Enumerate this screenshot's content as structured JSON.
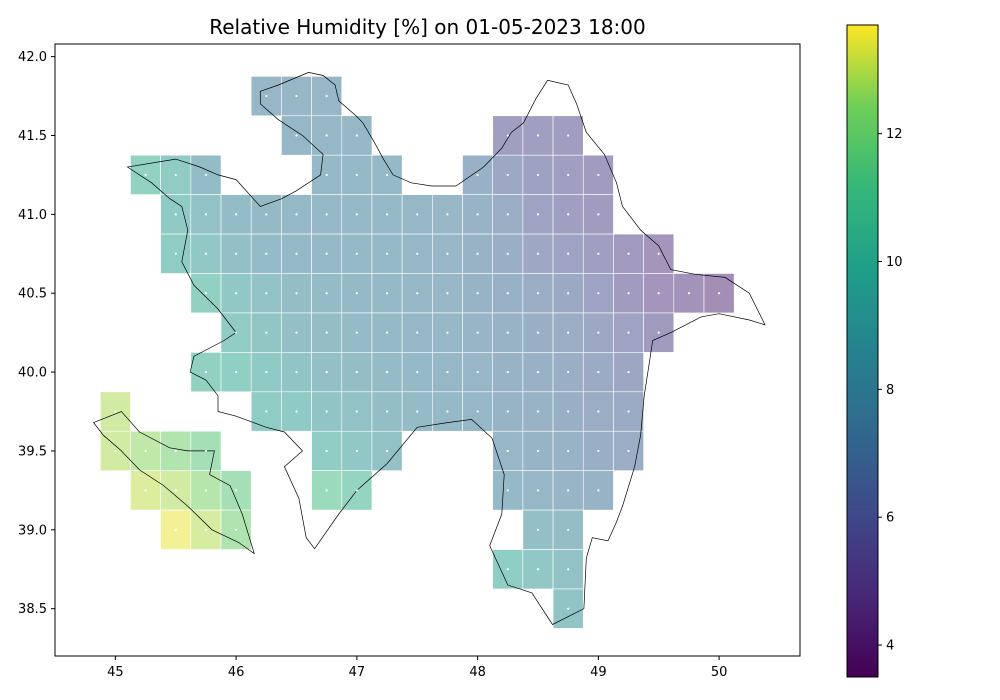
{
  "chart_data": {
    "type": "heatmap",
    "title": "Relative Humidity [%] on 01-05-2023 18:00",
    "xlabel": "",
    "ylabel": "",
    "xlim": [
      44.5,
      50.67
    ],
    "ylim": [
      38.2,
      42.08
    ],
    "x_ticks": [
      45,
      46,
      47,
      48,
      49,
      50
    ],
    "y_ticks": [
      38.5,
      39.0,
      39.5,
      40.0,
      40.5,
      41.0,
      41.5,
      42.0
    ],
    "x_tick_labels": [
      "45",
      "46",
      "47",
      "48",
      "49",
      "50"
    ],
    "y_tick_labels": [
      "38.5",
      "39.0",
      "39.5",
      "40.0",
      "40.5",
      "41.0",
      "41.5",
      "42.0"
    ],
    "grid": false,
    "cell_size_deg": 0.25,
    "colorbar": {
      "colormap": "viridis",
      "range": [
        3.5,
        13.7
      ],
      "ticks": [
        4,
        6,
        8,
        10,
        12
      ],
      "tick_labels": [
        "4",
        "6",
        "8",
        "10",
        "12"
      ]
    },
    "cells": [
      [
        46.25,
        41.75,
        7.6
      ],
      [
        46.5,
        41.75,
        7.6
      ],
      [
        46.75,
        41.75,
        7.6
      ],
      [
        46.5,
        41.5,
        7.7
      ],
      [
        46.75,
        41.5,
        7.7
      ],
      [
        47.0,
        41.5,
        7.7
      ],
      [
        48.25,
        41.5,
        5.7
      ],
      [
        48.5,
        41.5,
        5.6
      ],
      [
        48.75,
        41.5,
        5.5
      ],
      [
        45.25,
        41.25,
        10.3
      ],
      [
        45.5,
        41.25,
        9.6
      ],
      [
        45.75,
        41.25,
        8.2
      ],
      [
        46.75,
        41.25,
        7.9
      ],
      [
        47.0,
        41.25,
        7.9
      ],
      [
        47.25,
        41.25,
        7.9
      ],
      [
        48.0,
        41.25,
        7.1
      ],
      [
        48.25,
        41.25,
        6.4
      ],
      [
        48.5,
        41.25,
        5.8
      ],
      [
        48.75,
        41.25,
        5.6
      ],
      [
        49.0,
        41.25,
        5.4
      ],
      [
        45.5,
        41.0,
        9.5
      ],
      [
        45.75,
        41.0,
        8.7
      ],
      [
        46.0,
        41.0,
        8.2
      ],
      [
        46.25,
        41.0,
        8.0
      ],
      [
        46.5,
        41.0,
        7.9
      ],
      [
        46.75,
        41.0,
        7.9
      ],
      [
        47.0,
        41.0,
        7.9
      ],
      [
        47.25,
        41.0,
        7.9
      ],
      [
        47.5,
        41.0,
        7.8
      ],
      [
        47.75,
        41.0,
        7.6
      ],
      [
        48.0,
        41.0,
        7.3
      ],
      [
        48.25,
        41.0,
        6.7
      ],
      [
        48.5,
        41.0,
        6.0
      ],
      [
        48.75,
        41.0,
        5.7
      ],
      [
        49.0,
        41.0,
        5.4
      ],
      [
        45.5,
        40.75,
        9.8
      ],
      [
        45.75,
        40.75,
        9.2
      ],
      [
        46.0,
        40.75,
        8.5
      ],
      [
        46.25,
        40.75,
        8.2
      ],
      [
        46.5,
        40.75,
        8.0
      ],
      [
        46.75,
        40.75,
        8.0
      ],
      [
        47.0,
        40.75,
        8.0
      ],
      [
        47.25,
        40.75,
        7.9
      ],
      [
        47.5,
        40.75,
        7.8
      ],
      [
        47.75,
        40.75,
        7.6
      ],
      [
        48.0,
        40.75,
        7.3
      ],
      [
        48.25,
        40.75,
        6.9
      ],
      [
        48.5,
        40.75,
        6.4
      ],
      [
        48.75,
        40.75,
        6.0
      ],
      [
        49.0,
        40.75,
        5.6
      ],
      [
        49.25,
        40.75,
        5.2
      ],
      [
        49.5,
        40.75,
        4.9
      ],
      [
        45.75,
        40.5,
        10.2
      ],
      [
        46.0,
        40.5,
        9.2
      ],
      [
        46.25,
        40.5,
        8.7
      ],
      [
        46.5,
        40.5,
        8.3
      ],
      [
        46.75,
        40.5,
        8.1
      ],
      [
        47.0,
        40.5,
        8.0
      ],
      [
        47.25,
        40.5,
        7.9
      ],
      [
        47.5,
        40.5,
        7.8
      ],
      [
        47.75,
        40.5,
        7.6
      ],
      [
        48.0,
        40.5,
        7.4
      ],
      [
        48.25,
        40.5,
        7.1
      ],
      [
        48.5,
        40.5,
        6.8
      ],
      [
        48.75,
        40.5,
        6.5
      ],
      [
        49.0,
        40.5,
        6.0
      ],
      [
        49.25,
        40.5,
        5.4
      ],
      [
        49.5,
        40.5,
        4.9
      ],
      [
        49.75,
        40.5,
        4.7
      ],
      [
        50.0,
        40.5,
        4.4
      ],
      [
        46.0,
        40.25,
        9.6
      ],
      [
        46.25,
        40.25,
        9.1
      ],
      [
        46.5,
        40.25,
        8.6
      ],
      [
        46.75,
        40.25,
        8.3
      ],
      [
        47.0,
        40.25,
        8.1
      ],
      [
        47.25,
        40.25,
        8.0
      ],
      [
        47.5,
        40.25,
        7.8
      ],
      [
        47.75,
        40.25,
        7.7
      ],
      [
        48.0,
        40.25,
        7.5
      ],
      [
        48.25,
        40.25,
        7.3
      ],
      [
        48.5,
        40.25,
        7.0
      ],
      [
        48.75,
        40.25,
        6.8
      ],
      [
        49.0,
        40.25,
        6.4
      ],
      [
        49.25,
        40.25,
        5.9
      ],
      [
        49.5,
        40.25,
        5.3
      ],
      [
        45.75,
        40.0,
        10.2
      ],
      [
        46.0,
        40.0,
        10.0
      ],
      [
        46.25,
        40.0,
        9.5
      ],
      [
        46.5,
        40.0,
        9.0
      ],
      [
        46.75,
        40.0,
        8.6
      ],
      [
        47.0,
        40.0,
        8.3
      ],
      [
        47.25,
        40.0,
        8.1
      ],
      [
        47.5,
        40.0,
        7.9
      ],
      [
        47.75,
        40.0,
        7.8
      ],
      [
        48.0,
        40.0,
        7.6
      ],
      [
        48.25,
        40.0,
        7.3
      ],
      [
        48.5,
        40.0,
        7.1
      ],
      [
        48.75,
        40.0,
        6.9
      ],
      [
        49.0,
        40.0,
        6.6
      ],
      [
        49.25,
        40.0,
        6.3
      ],
      [
        45.0,
        39.75,
        12.9
      ],
      [
        46.25,
        39.75,
        9.8
      ],
      [
        46.5,
        39.75,
        9.5
      ],
      [
        46.75,
        39.75,
        9.0
      ],
      [
        47.0,
        39.75,
        8.7
      ],
      [
        47.25,
        39.75,
        8.4
      ],
      [
        47.5,
        39.75,
        8.1
      ],
      [
        47.75,
        39.75,
        7.9
      ],
      [
        48.0,
        39.75,
        7.7
      ],
      [
        48.25,
        39.75,
        7.4
      ],
      [
        48.5,
        39.75,
        7.2
      ],
      [
        48.75,
        39.75,
        7.0
      ],
      [
        49.0,
        39.75,
        6.8
      ],
      [
        49.25,
        39.75,
        6.6
      ],
      [
        45.0,
        39.5,
        12.9
      ],
      [
        45.25,
        39.5,
        12.6
      ],
      [
        45.5,
        39.5,
        12.2
      ],
      [
        45.75,
        39.5,
        11.6
      ],
      [
        46.75,
        39.5,
        9.6
      ],
      [
        47.0,
        39.5,
        9.2
      ],
      [
        47.25,
        39.5,
        8.8
      ],
      [
        48.25,
        39.5,
        7.6
      ],
      [
        48.5,
        39.5,
        7.4
      ],
      [
        48.75,
        39.5,
        7.2
      ],
      [
        49.0,
        39.5,
        7.0
      ],
      [
        49.25,
        39.5,
        6.8
      ],
      [
        45.25,
        39.25,
        13.1
      ],
      [
        45.5,
        39.25,
        12.9
      ],
      [
        45.75,
        39.25,
        12.4
      ],
      [
        46.0,
        39.25,
        11.6
      ],
      [
        46.75,
        39.25,
        11.2
      ],
      [
        47.0,
        39.25,
        10.5
      ],
      [
        48.25,
        39.25,
        7.9
      ],
      [
        48.5,
        39.25,
        7.7
      ],
      [
        48.75,
        39.25,
        7.5
      ],
      [
        49.0,
        39.25,
        7.2
      ],
      [
        45.5,
        39.0,
        13.5
      ],
      [
        45.75,
        39.0,
        13.0
      ],
      [
        46.0,
        39.0,
        12.1
      ],
      [
        48.5,
        39.0,
        8.6
      ],
      [
        48.75,
        39.0,
        8.3
      ],
      [
        48.25,
        38.75,
        9.9
      ],
      [
        48.5,
        38.75,
        9.2
      ],
      [
        48.75,
        38.75,
        8.8
      ],
      [
        48.75,
        38.5,
        9.0
      ]
    ],
    "outline_lonlat": [
      [
        46.2,
        41.78
      ],
      [
        46.35,
        41.82
      ],
      [
        46.6,
        41.9
      ],
      [
        46.72,
        41.88
      ],
      [
        46.82,
        41.82
      ],
      [
        46.85,
        41.72
      ],
      [
        47.0,
        41.62
      ],
      [
        47.05,
        41.58
      ],
      [
        47.15,
        41.45
      ],
      [
        47.22,
        41.35
      ],
      [
        47.3,
        41.25
      ],
      [
        47.45,
        41.2
      ],
      [
        47.62,
        41.18
      ],
      [
        47.82,
        41.18
      ],
      [
        48.05,
        41.3
      ],
      [
        48.2,
        41.42
      ],
      [
        48.28,
        41.52
      ],
      [
        48.38,
        41.58
      ],
      [
        48.48,
        41.73
      ],
      [
        48.58,
        41.85
      ],
      [
        48.75,
        41.82
      ],
      [
        48.82,
        41.7
      ],
      [
        48.9,
        41.52
      ],
      [
        49.05,
        41.38
      ],
      [
        49.15,
        41.2
      ],
      [
        49.2,
        41.05
      ],
      [
        49.35,
        40.9
      ],
      [
        49.5,
        40.8
      ],
      [
        49.6,
        40.65
      ],
      [
        49.8,
        40.62
      ],
      [
        50.05,
        40.6
      ],
      [
        50.25,
        40.5
      ],
      [
        50.38,
        40.3
      ],
      [
        50.25,
        40.33
      ],
      [
        50.0,
        40.37
      ],
      [
        49.85,
        40.35
      ],
      [
        49.6,
        40.25
      ],
      [
        49.45,
        40.2
      ],
      [
        49.42,
        40.05
      ],
      [
        49.38,
        39.85
      ],
      [
        49.35,
        39.6
      ],
      [
        49.3,
        39.4
      ],
      [
        49.2,
        39.15
      ],
      [
        49.15,
        39.05
      ],
      [
        49.08,
        38.93
      ],
      [
        48.95,
        38.95
      ],
      [
        48.9,
        38.82
      ],
      [
        48.88,
        38.5
      ],
      [
        48.62,
        38.4
      ],
      [
        48.45,
        38.6
      ],
      [
        48.25,
        38.65
      ],
      [
        48.1,
        38.9
      ],
      [
        48.2,
        39.1
      ],
      [
        48.22,
        39.35
      ],
      [
        48.12,
        39.58
      ],
      [
        47.95,
        39.7
      ],
      [
        47.75,
        39.68
      ],
      [
        47.5,
        39.65
      ],
      [
        47.25,
        39.42
      ],
      [
        47.0,
        39.25
      ],
      [
        46.85,
        39.1
      ],
      [
        46.65,
        38.88
      ],
      [
        46.58,
        38.95
      ],
      [
        46.52,
        39.2
      ],
      [
        46.4,
        39.4
      ],
      [
        46.55,
        39.5
      ],
      [
        46.4,
        39.62
      ],
      [
        46.25,
        39.65
      ],
      [
        46.0,
        39.72
      ],
      [
        45.85,
        39.75
      ],
      [
        45.85,
        39.85
      ],
      [
        45.75,
        39.95
      ],
      [
        45.62,
        40.0
      ],
      [
        45.65,
        40.1
      ],
      [
        45.9,
        40.2
      ],
      [
        46.0,
        40.25
      ],
      [
        45.85,
        40.4
      ],
      [
        45.65,
        40.55
      ],
      [
        45.55,
        40.7
      ],
      [
        45.6,
        40.9
      ],
      [
        45.55,
        41.05
      ],
      [
        45.45,
        41.1
      ],
      [
        45.3,
        41.2
      ],
      [
        45.1,
        41.3
      ],
      [
        45.5,
        41.35
      ],
      [
        45.7,
        41.3
      ],
      [
        45.85,
        41.25
      ],
      [
        46.0,
        41.22
      ],
      [
        46.2,
        41.05
      ],
      [
        46.38,
        41.1
      ],
      [
        46.5,
        41.15
      ],
      [
        46.7,
        41.25
      ],
      [
        46.72,
        41.38
      ],
      [
        46.55,
        41.5
      ],
      [
        46.35,
        41.6
      ],
      [
        46.2,
        41.7
      ]
    ],
    "nakhchivan_lonlat": [
      [
        44.82,
        39.68
      ],
      [
        45.05,
        39.75
      ],
      [
        45.2,
        39.62
      ],
      [
        45.45,
        39.52
      ],
      [
        45.6,
        39.5
      ],
      [
        45.82,
        39.5
      ],
      [
        45.78,
        39.35
      ],
      [
        45.95,
        39.28
      ],
      [
        46.05,
        39.1
      ],
      [
        46.15,
        38.85
      ],
      [
        46.02,
        38.92
      ],
      [
        45.8,
        39.0
      ],
      [
        45.6,
        39.15
      ],
      [
        45.4,
        39.28
      ],
      [
        45.2,
        39.38
      ],
      [
        45.05,
        39.5
      ],
      [
        44.9,
        39.6
      ]
    ]
  }
}
